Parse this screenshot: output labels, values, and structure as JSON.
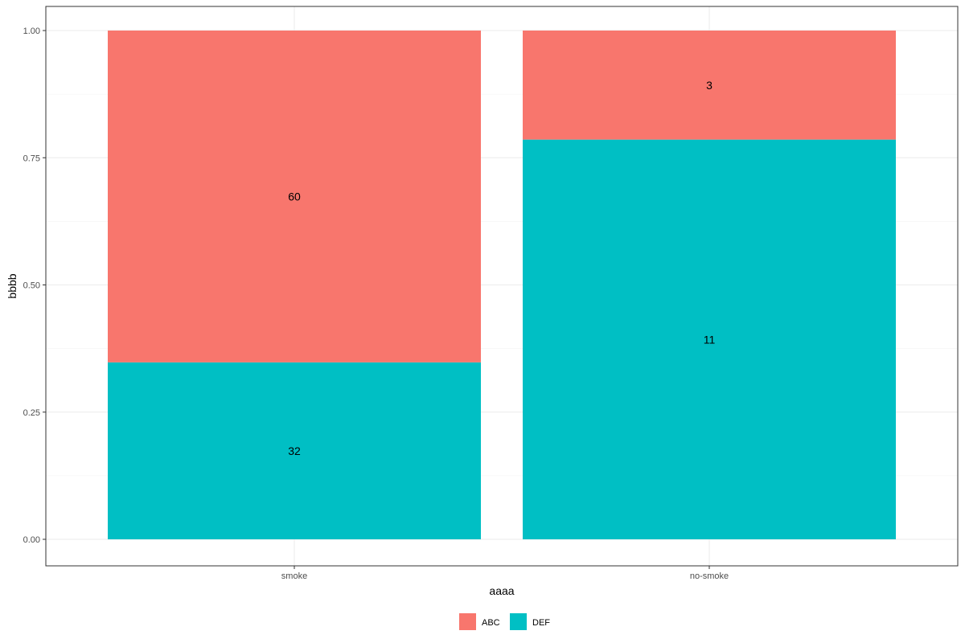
{
  "chart_data": {
    "type": "bar",
    "stacked": true,
    "normalized": true,
    "categories": [
      "smoke",
      "no-smoke"
    ],
    "series": [
      {
        "name": "ABC",
        "color": "#F8766D",
        "counts": [
          60,
          3
        ]
      },
      {
        "name": "DEF",
        "color": "#00BFC4",
        "counts": [
          32,
          11
        ]
      }
    ],
    "stack_order": [
      "DEF",
      "ABC"
    ],
    "xlabel": "aaaa",
    "ylabel": "bbbb",
    "ylim": [
      0,
      1
    ],
    "yticks": [
      "0.00",
      "0.25",
      "0.50",
      "0.75",
      "1.00"
    ],
    "grid": true,
    "legend_position": "bottom"
  }
}
